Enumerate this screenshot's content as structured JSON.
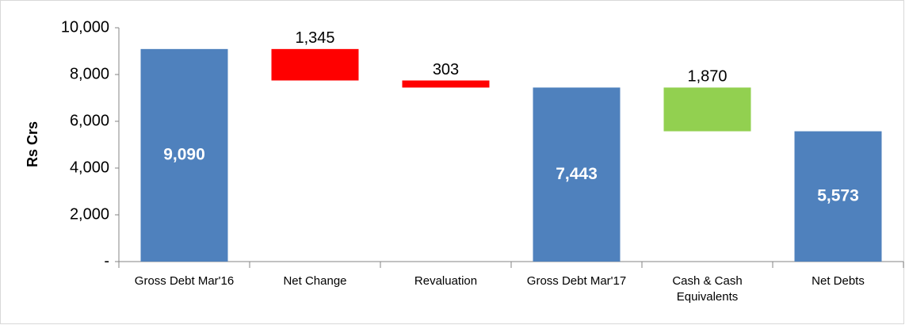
{
  "chart_data": {
    "type": "waterfall",
    "y_label": "Rs Crs",
    "categories": [
      "Gross Debt Mar'16",
      "Net Change",
      "Revaluation",
      "Gross Debt Mar'17",
      "Cash & Cash Equivalents",
      "Net Debts"
    ],
    "values": [
      9090,
      1345,
      303,
      7443,
      1870,
      5573
    ],
    "value_labels": [
      "9,090",
      "1,345",
      "303",
      "7,443",
      "1,870",
      "5,573"
    ],
    "measures": [
      "total",
      "decrease",
      "decrease",
      "total",
      "decrease",
      "total"
    ],
    "colors": [
      "#4f81bd",
      "#ff0000",
      "#ff0000",
      "#4f81bd",
      "#92d050",
      "#4f81bd"
    ],
    "ylim": [
      0,
      10000
    ],
    "yticks": [
      {
        "value": 0,
        "label": "-"
      },
      {
        "value": 2000,
        "label": "2,000"
      },
      {
        "value": 4000,
        "label": "4,000"
      },
      {
        "value": 6000,
        "label": "6,000"
      },
      {
        "value": 8000,
        "label": "8,000"
      },
      {
        "value": 10000,
        "label": "10,000"
      }
    ],
    "grid": false
  }
}
